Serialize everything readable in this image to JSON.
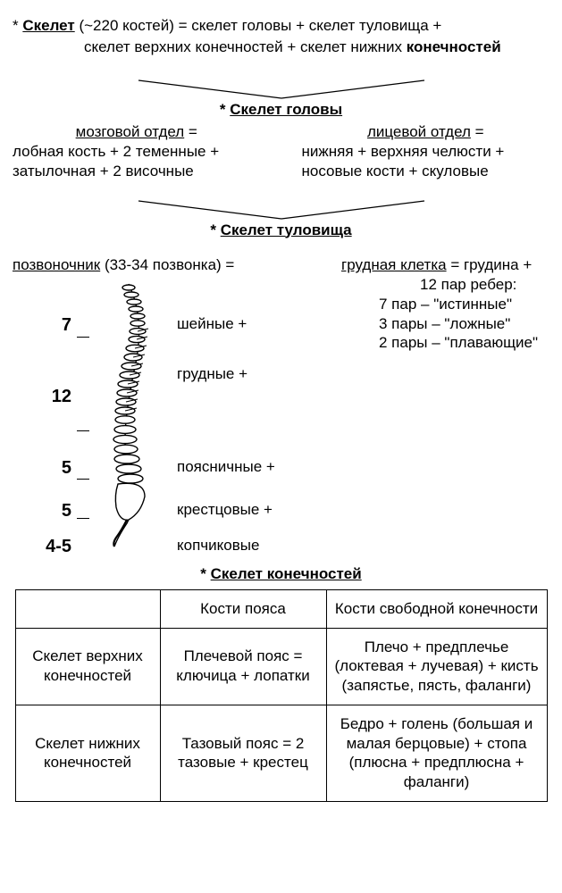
{
  "header": {
    "line1_pre": "* ",
    "line1_b": "Скелет",
    "line1_rest": " (~220 костей) = скелет головы + скелет туловища +",
    "line2": "скелет верхних конечностей + скелет нижних ",
    "line2_b": "конечностей"
  },
  "head_section": {
    "title": "Скелет головы",
    "left_head": "мозговой отдел",
    "left_body1": "лобная кость + 2 теменные +",
    "left_body2": "затылочная + 2 височные",
    "right_head": "лицевой отдел",
    "right_body1": "нижняя + верхняя челюсти +",
    "right_body2": "носовые кости + скуловые"
  },
  "trunk_section": {
    "title": "Скелет туловища",
    "left_head": "позвоночник",
    "left_head_after": " (33-34 позвонка) =",
    "right_head": "грудная клетка",
    "right_head_after": " = грудина +",
    "right_lines": [
      "12 пар ребер:",
      "7 пар – \"истинные\"",
      "3 пары – \"ложные\"",
      "2 пары – \"плавающие\""
    ],
    "spine_rows": [
      {
        "num": "7",
        "label": "шейные +",
        "numTop": 44,
        "lblTop": 44,
        "tickTop": 69
      },
      {
        "num": "",
        "label": "грудные +",
        "numTop": 0,
        "lblTop": 100,
        "tickTop": 0
      },
      {
        "num": "12",
        "label": "",
        "numTop": 124,
        "lblTop": 0,
        "tickTop": 174
      },
      {
        "num": "5",
        "label": "поясничные +",
        "numTop": 204,
        "lblTop": 204,
        "tickTop": 228
      },
      {
        "num": "5",
        "label": "крестцовые +",
        "numTop": 252,
        "lblTop": 252,
        "tickTop": 272
      },
      {
        "num": "4-5",
        "label": "копчиковые",
        "numTop": 292,
        "lblTop": 292,
        "tickTop": 0
      }
    ]
  },
  "limb_section": {
    "title": "Скелет конечностей",
    "table": {
      "columns": [
        "",
        "Кости пояса",
        "Кости свободной конечности"
      ],
      "rows": [
        {
          "head": "Скелет верхних конечностей",
          "c2": "Плечевой пояс = ключица + лопатки",
          "c3": "Плечо + предплечье (локтевая + лучевая) + кисть (запястье, пясть, фаланги)"
        },
        {
          "head": "Скелет нижних конечностей",
          "c2": "Тазовый пояс = 2 тазовые + крестец",
          "c3": "Бедро + голень (большая и малая берцовые) + стопа (плюсна + предплюсна + фаланги)"
        }
      ]
    }
  },
  "style": {
    "line_color": "#000000",
    "star": "* "
  }
}
